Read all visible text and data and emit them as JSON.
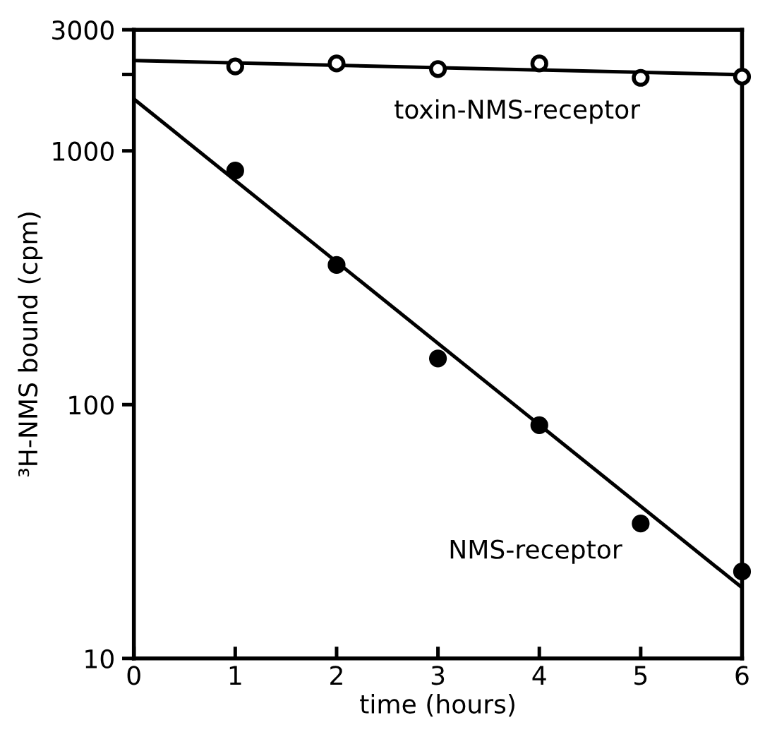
{
  "chart_data": {
    "type": "scatter",
    "xlabel": "time (hours)",
    "ylabel": "³H-NMS bound (cpm)",
    "log": "y",
    "xlim": [
      0,
      6
    ],
    "ylim": [
      10,
      3000
    ],
    "xticks": [
      0,
      1,
      2,
      3,
      4,
      5,
      6
    ],
    "yticks": [
      10,
      100,
      1000,
      {
        "value": 2000,
        "label": null
      },
      3000
    ],
    "grid": false,
    "legend": false,
    "series": [
      {
        "marker": "open circle",
        "color": "#000000",
        "x": [
          1,
          2,
          3,
          4,
          5,
          6
        ],
        "values": [
          2150,
          2210,
          2100,
          2210,
          1940,
          1960
        ]
      },
      {
        "marker": "circle",
        "color": "#000000",
        "x": [
          1,
          2,
          3,
          4,
          5,
          6
        ],
        "values": [
          836,
          355,
          152,
          83,
          34,
          22
        ]
      },
      {
        "type": "line",
        "marker": "none",
        "color": "#000000",
        "x": [
          0,
          6
        ],
        "values": [
          2270,
          1995
        ]
      },
      {
        "type": "line",
        "marker": "none",
        "color": "#000000",
        "x": [
          0,
          6
        ],
        "values": [
          1600,
          19
        ]
      }
    ],
    "annotations": [
      "toxin-NMS-receptor",
      "NMS-receptor"
    ]
  }
}
